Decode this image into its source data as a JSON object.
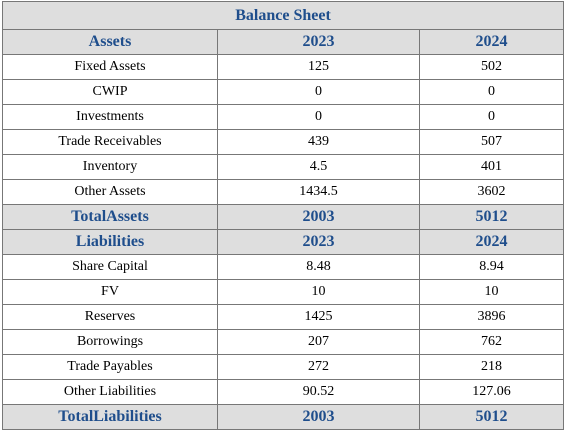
{
  "title": "Balance Sheet",
  "sections": [
    {
      "header": [
        "Assets",
        2023,
        2024
      ],
      "rows": [
        [
          "Fixed Assets",
          125,
          502
        ],
        [
          "CWIP",
          0,
          0
        ],
        [
          "Investments",
          0,
          0
        ],
        [
          "Trade Receivables",
          439,
          507
        ],
        [
          "Inventory",
          4.5,
          401
        ],
        [
          "Other Assets",
          1434.5,
          3602
        ]
      ],
      "total": [
        "TotalAssets",
        2003,
        5012
      ]
    },
    {
      "header": [
        "Liabilities",
        2023,
        2024
      ],
      "rows": [
        [
          "Share Capital",
          8.48,
          8.94
        ],
        [
          "FV",
          10,
          10
        ],
        [
          "Reserves",
          1425,
          3896
        ],
        [
          "Borrowings",
          207,
          762
        ],
        [
          "Trade Payables",
          272,
          218
        ],
        [
          "Other Liabilities",
          90.52,
          127.06
        ]
      ],
      "total": [
        "TotalLiabilities",
        2003,
        5012
      ]
    }
  ]
}
